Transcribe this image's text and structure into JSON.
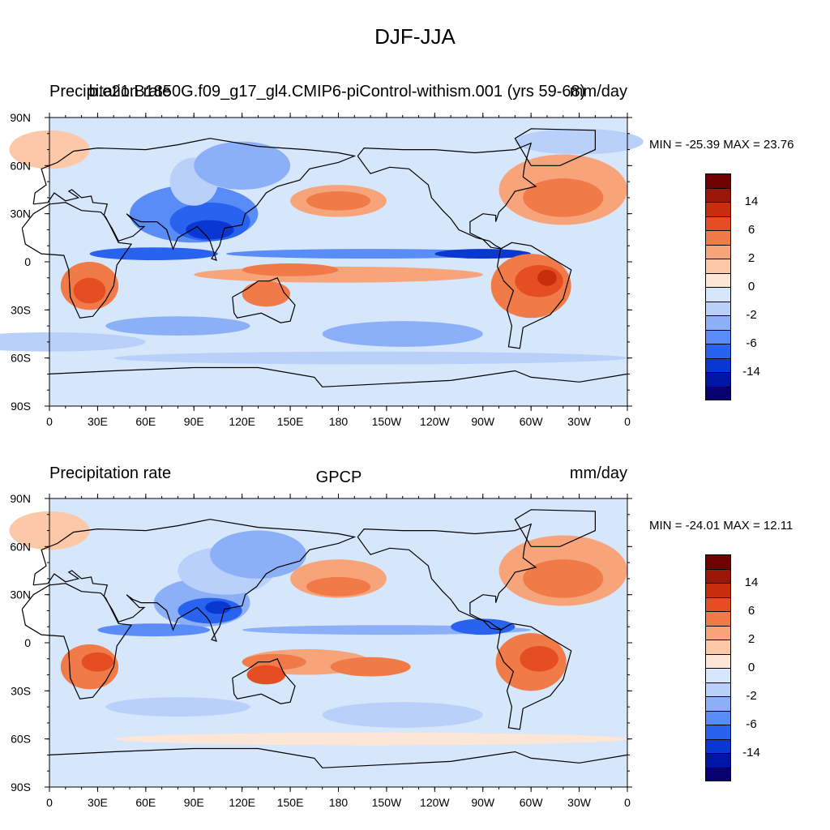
{
  "figure_title": "DJF-JJA",
  "colors": {
    "levels": [
      "#08006e",
      "#0014a6",
      "#0a36d2",
      "#2a62f0",
      "#5a8cf8",
      "#8cb0f8",
      "#b8d0fa",
      "#d6e6fb",
      "#fde6d6",
      "#fdc8a8",
      "#f8a47a",
      "#f07a48",
      "#e44e22",
      "#c82d0c",
      "#9a1608",
      "#6e0000"
    ],
    "land": "none",
    "coast": "#000000"
  },
  "colorbar_ticks": [
    "14",
    "6",
    "2",
    "0",
    "-2",
    "-6",
    "-14"
  ],
  "panels": [
    {
      "left_title": "Precipitation rate",
      "center_title": "b.e21.B1850G.f09_g17_gl4.CMIP6-piControl-withism.001 (yrs 59-68)",
      "right_title": "mm/day",
      "minmax": "MIN = -25.39 MAX =  23.76",
      "lat_labels": [
        "90N",
        "60N",
        "30N",
        "0",
        "30S",
        "60S",
        "90S"
      ],
      "lon_labels": [
        "0",
        "30E",
        "60E",
        "90E",
        "120E",
        "150E",
        "180",
        "150W",
        "120W",
        "90W",
        "60W",
        "30W",
        "0"
      ]
    },
    {
      "left_title": "Precipitation rate",
      "center_title": "GPCP",
      "right_title": "mm/day",
      "minmax": "MIN = -24.01 MAX =  12.11",
      "lat_labels": [
        "90N",
        "60N",
        "30N",
        "0",
        "30S",
        "60S",
        "90S"
      ],
      "lon_labels": [
        "0",
        "30E",
        "60E",
        "90E",
        "120E",
        "150E",
        "180",
        "150W",
        "120W",
        "90W",
        "60W",
        "30W",
        "0"
      ]
    }
  ]
}
